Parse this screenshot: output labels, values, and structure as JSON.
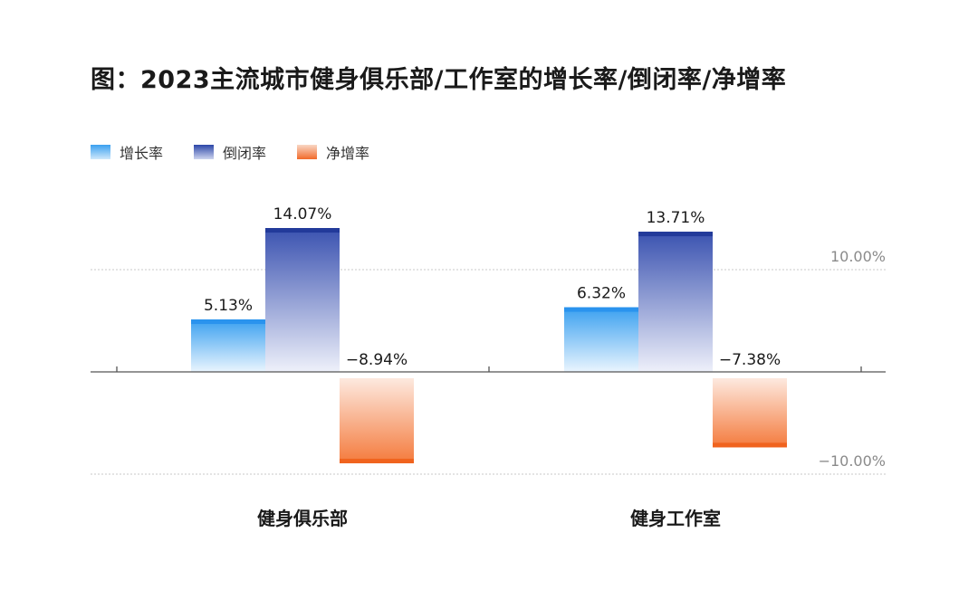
{
  "chart_data": {
    "type": "bar",
    "title": "图：2023主流城市健身俱乐部/工作室的增长率/倒闭率/净增率",
    "categories": [
      "健身俱乐部",
      "健身工作室"
    ],
    "series": [
      {
        "name": "增长率",
        "values": [
          5.13,
          6.32
        ],
        "labels": [
          "5.13%",
          "6.32%"
        ],
        "color": "#2a93ee"
      },
      {
        "name": "倒闭率",
        "values": [
          14.07,
          13.71
        ],
        "labels": [
          "14.07%",
          "13.71%"
        ],
        "color": "#2a3f9e"
      },
      {
        "name": "净增率",
        "values": [
          -8.94,
          -7.38
        ],
        "labels": [
          "−8.94%",
          "−7.38%"
        ],
        "color": "#f2621f"
      }
    ],
    "reference_lines": [
      {
        "value": 10,
        "label": "10.00%"
      },
      {
        "value": -10,
        "label": "−10.00%"
      }
    ],
    "legend_position": "top-left",
    "grid": false
  }
}
